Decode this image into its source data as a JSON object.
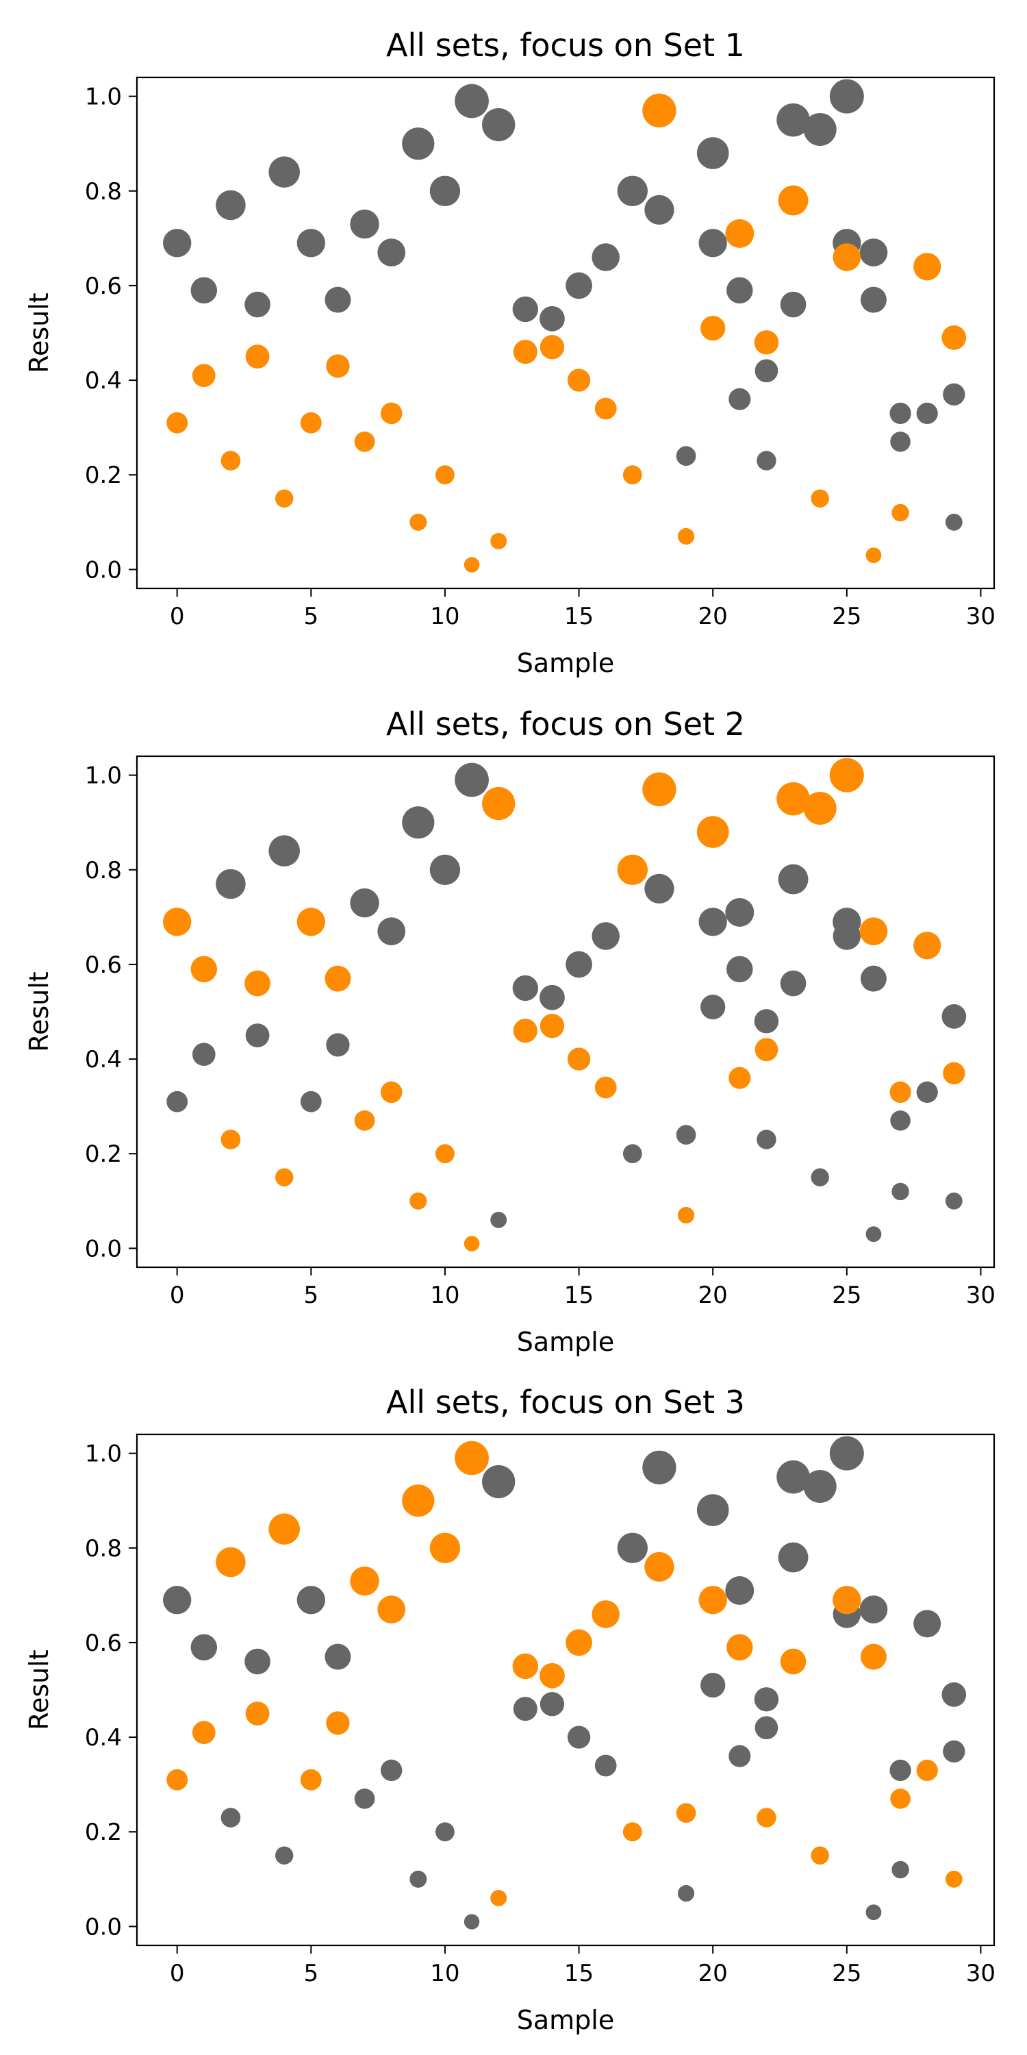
{
  "colors": {
    "highlight": "#ff8c00",
    "background_points": "#666666"
  },
  "size_encoding": "marker size grows with Result",
  "chart_data": [
    {
      "type": "scatter",
      "title": "All sets, focus on Set 1",
      "xlabel": "Sample",
      "ylabel": "Result",
      "xlim": [
        -1.5,
        30.5
      ],
      "ylim": [
        -0.04,
        1.04
      ],
      "xticks": [
        0,
        5,
        10,
        15,
        20,
        25,
        30
      ],
      "yticks": [
        "0.0",
        "0.2",
        "0.4",
        "0.6",
        "0.8",
        "1.0"
      ],
      "grid": false,
      "legend": "none",
      "focus_set": 0
    },
    {
      "type": "scatter",
      "title": "All sets, focus on Set 2",
      "xlabel": "Sample",
      "ylabel": "Result",
      "xlim": [
        -1.5,
        30.5
      ],
      "ylim": [
        -0.04,
        1.04
      ],
      "xticks": [
        0,
        5,
        10,
        15,
        20,
        25,
        30
      ],
      "yticks": [
        "0.0",
        "0.2",
        "0.4",
        "0.6",
        "0.8",
        "1.0"
      ],
      "grid": false,
      "legend": "none",
      "focus_set": 1
    },
    {
      "type": "scatter",
      "title": "All sets, focus on Set 3",
      "xlabel": "Sample",
      "ylabel": "Result",
      "xlim": [
        -1.5,
        30.5
      ],
      "ylim": [
        -0.04,
        1.04
      ],
      "xticks": [
        0,
        5,
        10,
        15,
        20,
        25,
        30
      ],
      "yticks": [
        "0.0",
        "0.2",
        "0.4",
        "0.6",
        "0.8",
        "1.0"
      ],
      "grid": false,
      "legend": "none",
      "focus_set": 2
    }
  ],
  "series": [
    {
      "x": [
        0,
        1,
        2,
        3,
        4,
        5,
        6,
        7,
        8,
        9,
        10,
        11,
        12,
        13,
        14,
        15,
        16,
        17,
        18,
        19,
        20,
        21,
        22,
        23,
        24,
        25,
        26,
        27,
        28,
        29
      ],
      "values": [
        0.31,
        0.41,
        0.23,
        0.45,
        0.15,
        0.31,
        0.43,
        0.27,
        0.33,
        0.1,
        0.2,
        0.01,
        0.06,
        0.46,
        0.47,
        0.4,
        0.34,
        0.2,
        0.97,
        0.07,
        0.51,
        0.71,
        0.48,
        0.78,
        0.15,
        0.66,
        0.03,
        0.12,
        0.64,
        0.49
      ]
    },
    {
      "x": [
        0,
        1,
        2,
        3,
        4,
        5,
        6,
        7,
        8,
        9,
        10,
        11,
        12,
        13,
        14,
        15,
        16,
        17,
        18,
        19,
        20,
        21,
        22,
        23,
        24,
        25,
        26,
        27,
        28,
        29
      ],
      "values": [
        0.69,
        0.59,
        0.23,
        0.56,
        0.15,
        0.69,
        0.57,
        0.27,
        0.33,
        0.1,
        0.2,
        0.01,
        0.94,
        0.46,
        0.47,
        0.4,
        0.34,
        0.8,
        0.97,
        0.07,
        0.88,
        0.36,
        0.42,
        0.95,
        0.93,
        1.0,
        0.67,
        0.33,
        0.64,
        0.37
      ]
    },
    {
      "x": [
        0,
        1,
        2,
        3,
        4,
        5,
        6,
        7,
        8,
        9,
        10,
        11,
        12,
        13,
        14,
        15,
        16,
        17,
        18,
        19,
        20,
        21,
        22,
        23,
        24,
        25,
        26,
        27,
        28,
        29
      ],
      "values": [
        0.31,
        0.41,
        0.77,
        0.45,
        0.84,
        0.31,
        0.43,
        0.73,
        0.67,
        0.9,
        0.8,
        0.99,
        0.06,
        0.55,
        0.53,
        0.6,
        0.66,
        0.2,
        0.76,
        0.24,
        0.69,
        0.59,
        0.23,
        0.56,
        0.15,
        0.69,
        0.57,
        0.27,
        0.33,
        0.1
      ]
    }
  ]
}
